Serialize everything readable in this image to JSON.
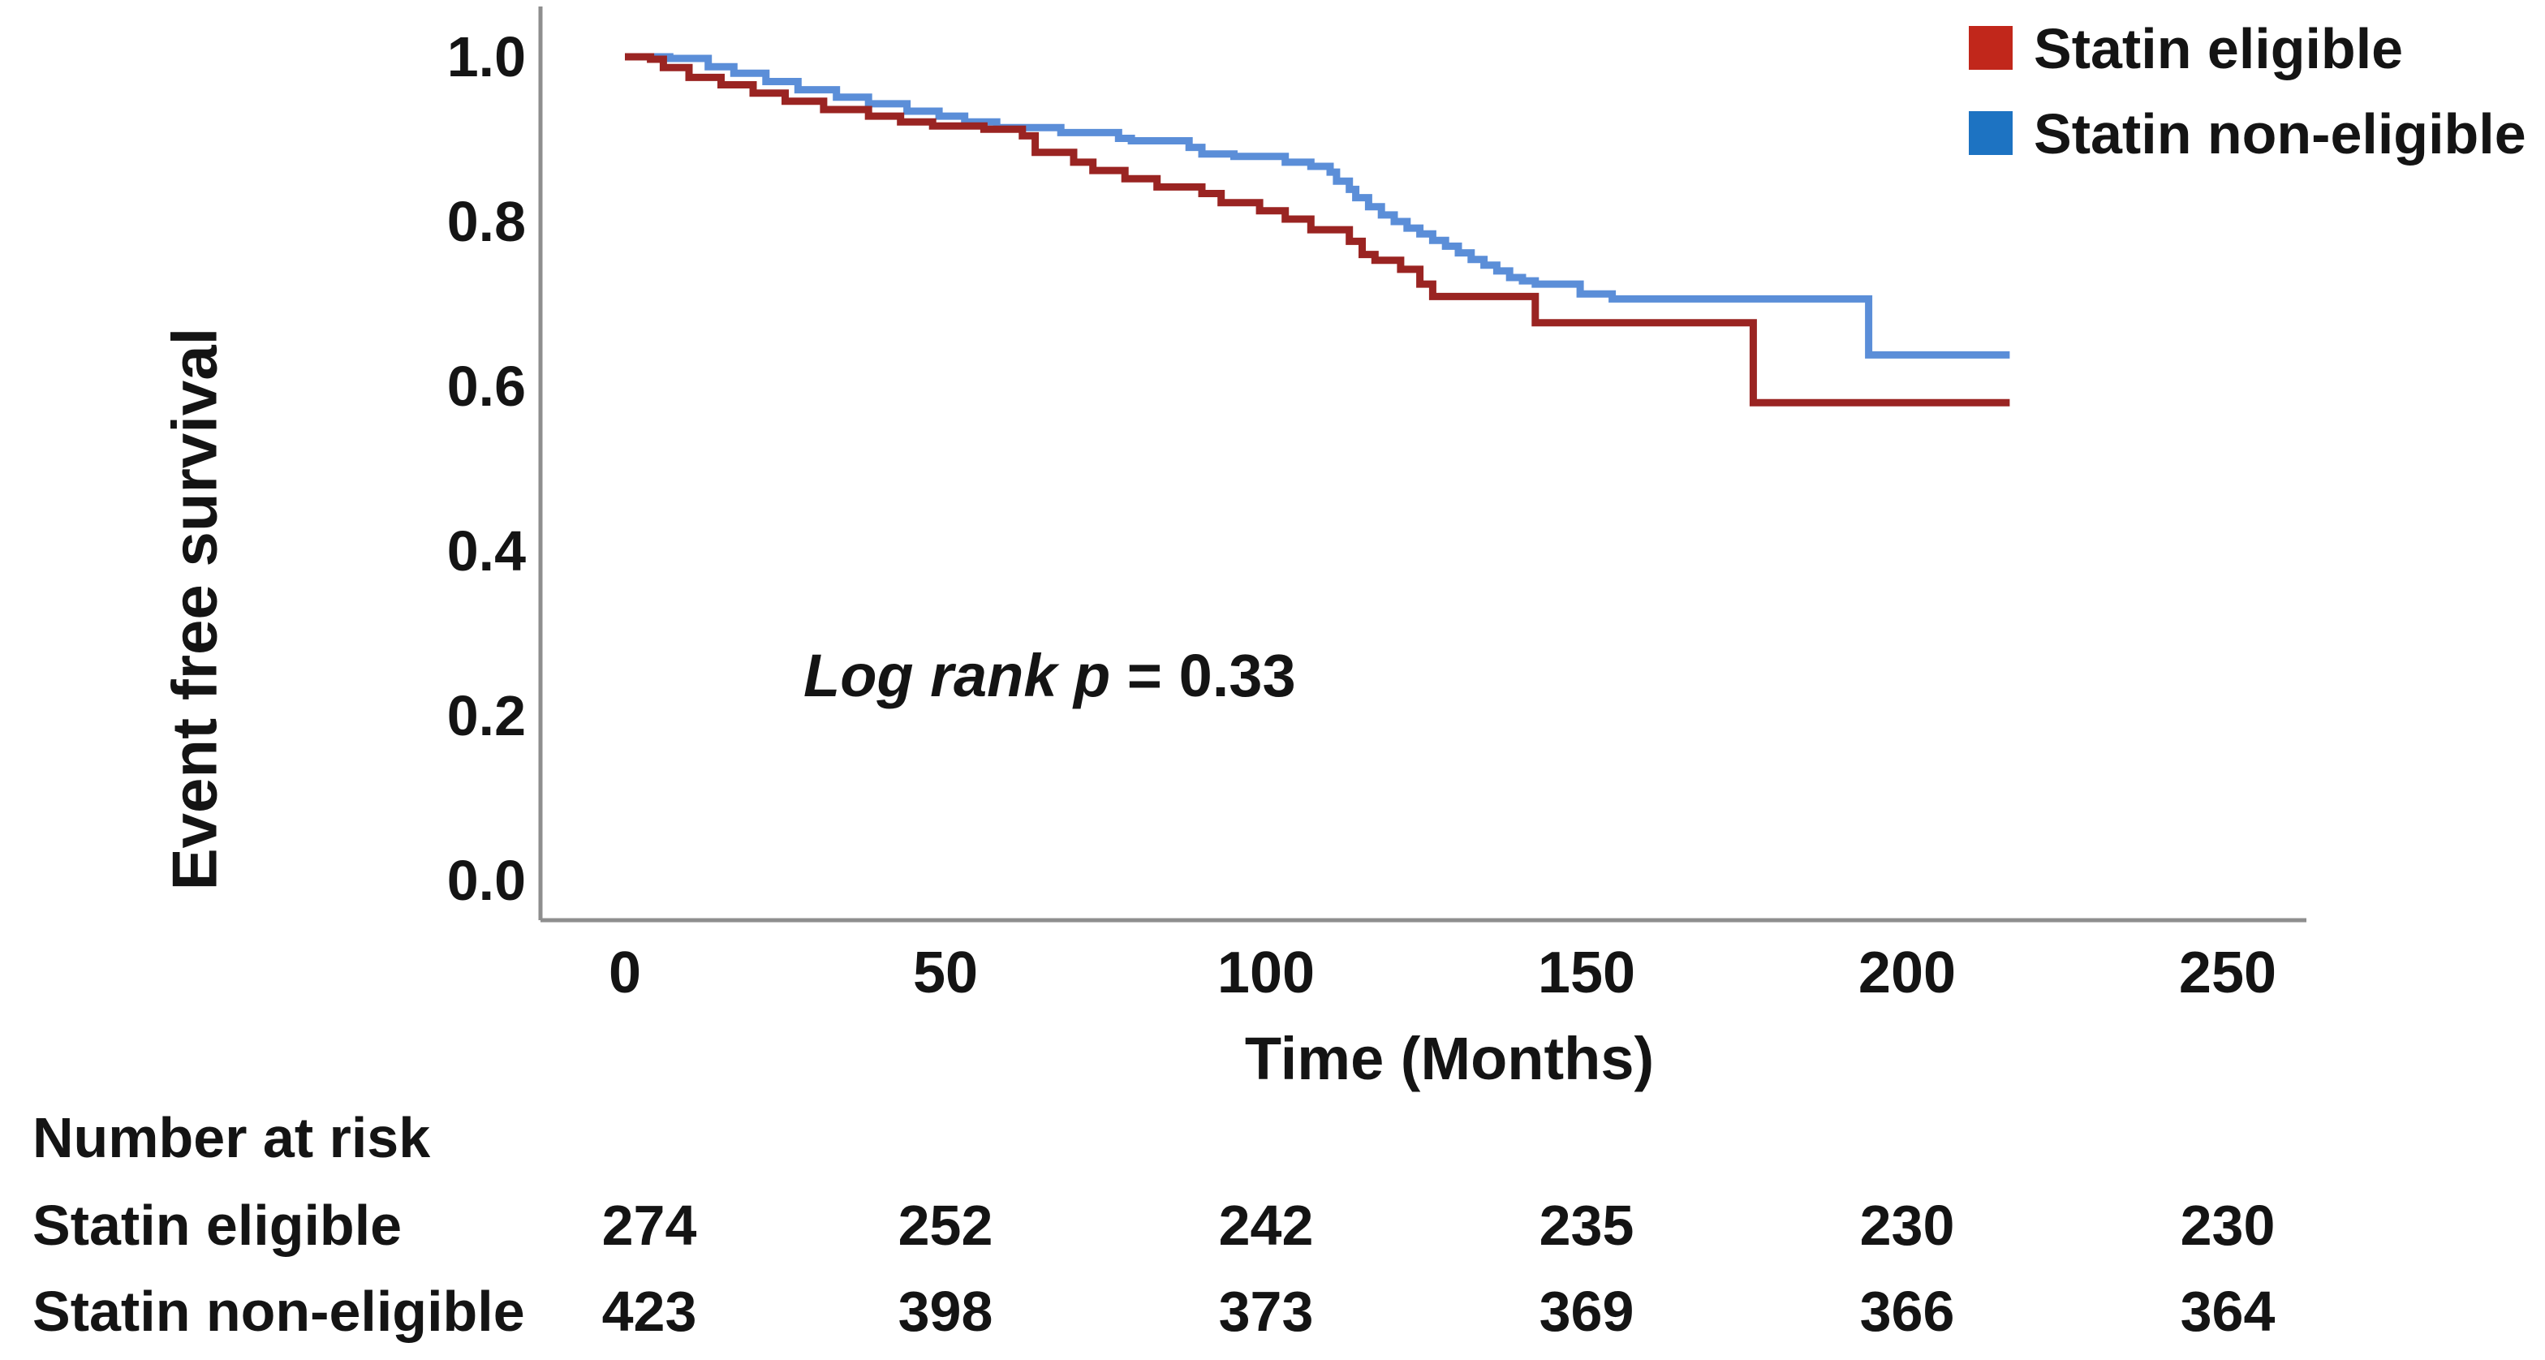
{
  "figure": {
    "background": "#ffffff",
    "text_color": "#141414",
    "axis_color": "#8e8e8e"
  },
  "chart_data": {
    "type": "line",
    "subtype": "kaplan_meier_step",
    "title": "",
    "xlabel": "Time (Months)",
    "ylabel": "Event free survival",
    "xlim": [
      0,
      250
    ],
    "ylim": [
      0.0,
      1.0
    ],
    "x_ticks": [
      "0",
      "50",
      "100",
      "150",
      "200",
      "250"
    ],
    "y_ticks": [
      "1.0",
      "0.8",
      "0.6",
      "0.4",
      "0.2",
      "0.0"
    ],
    "grid": false,
    "legend_position": "top-right",
    "annotation": {
      "italic_part": "Log rank p",
      "value_part": " = 0.33"
    },
    "end_time": 216,
    "series": [
      {
        "name": "Statin non-eligible",
        "curve_color": "#5b8ed8",
        "legend_color": "#1d73c2",
        "points": [
          [
            0,
            1.0
          ],
          [
            7,
            0.998
          ],
          [
            13,
            0.988
          ],
          [
            17,
            0.98
          ],
          [
            22,
            0.97
          ],
          [
            27,
            0.96
          ],
          [
            33,
            0.951
          ],
          [
            38,
            0.943
          ],
          [
            44,
            0.934
          ],
          [
            49,
            0.928
          ],
          [
            53,
            0.921
          ],
          [
            58,
            0.914
          ],
          [
            68,
            0.908
          ],
          [
            77,
            0.901
          ],
          [
            79,
            0.898
          ],
          [
            88,
            0.89
          ],
          [
            90,
            0.882
          ],
          [
            95,
            0.879
          ],
          [
            103,
            0.872
          ],
          [
            107,
            0.867
          ],
          [
            110,
            0.86
          ],
          [
            111,
            0.849
          ],
          [
            113,
            0.839
          ],
          [
            114,
            0.829
          ],
          [
            116,
            0.818
          ],
          [
            118,
            0.808
          ],
          [
            120,
            0.8
          ],
          [
            122,
            0.792
          ],
          [
            124,
            0.785
          ],
          [
            126,
            0.777
          ],
          [
            128,
            0.77
          ],
          [
            130,
            0.762
          ],
          [
            132,
            0.754
          ],
          [
            134,
            0.747
          ],
          [
            136,
            0.74
          ],
          [
            138,
            0.732
          ],
          [
            140,
            0.728
          ],
          [
            142,
            0.724
          ],
          [
            149,
            0.712
          ],
          [
            154,
            0.706
          ],
          [
            194,
            0.638
          ]
        ]
      },
      {
        "name": "Statin eligible",
        "curve_color": "#9a2422",
        "legend_color": "#c1271b",
        "points": [
          [
            0,
            1.0
          ],
          [
            4,
            0.997
          ],
          [
            6,
            0.987
          ],
          [
            10,
            0.975
          ],
          [
            15,
            0.966
          ],
          [
            20,
            0.956
          ],
          [
            25,
            0.946
          ],
          [
            31,
            0.936
          ],
          [
            38,
            0.928
          ],
          [
            43,
            0.921
          ],
          [
            48,
            0.916
          ],
          [
            56,
            0.912
          ],
          [
            62,
            0.904
          ],
          [
            64,
            0.884
          ],
          [
            70,
            0.872
          ],
          [
            73,
            0.862
          ],
          [
            78,
            0.852
          ],
          [
            83,
            0.842
          ],
          [
            90,
            0.834
          ],
          [
            93,
            0.823
          ],
          [
            99,
            0.813
          ],
          [
            103,
            0.803
          ],
          [
            107,
            0.79
          ],
          [
            113,
            0.776
          ],
          [
            115,
            0.76
          ],
          [
            117,
            0.753
          ],
          [
            121,
            0.742
          ],
          [
            124,
            0.724
          ],
          [
            126,
            0.709
          ],
          [
            142,
            0.677
          ],
          [
            176,
            0.58
          ]
        ]
      }
    ],
    "legend_order": [
      "Statin eligible",
      "Statin non-eligible"
    ]
  },
  "risk_table": {
    "title": "Number at risk",
    "time_points": [
      "0",
      "50",
      "100",
      "150",
      "200",
      "250"
    ],
    "rows": [
      {
        "label": "Statin eligible",
        "values": [
          "274",
          "252",
          "242",
          "235",
          "230",
          "230"
        ]
      },
      {
        "label": "Statin non-eligible",
        "values": [
          "423",
          "398",
          "373",
          "369",
          "366",
          "364"
        ]
      }
    ]
  }
}
